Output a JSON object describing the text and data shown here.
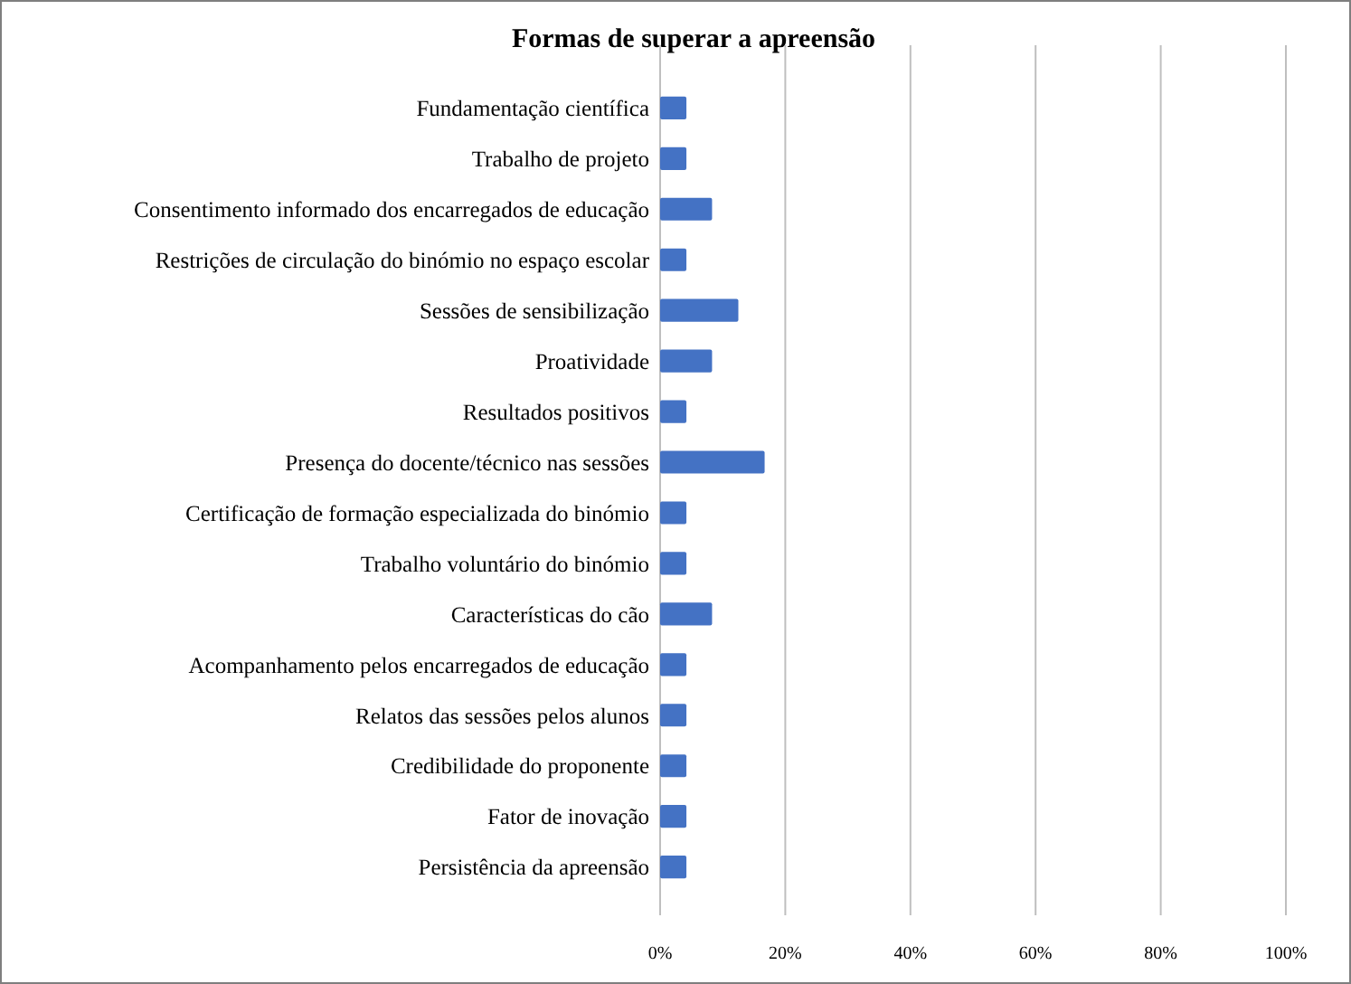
{
  "chart_data": {
    "type": "bar",
    "orientation": "horizontal",
    "title": "Formas de superar a apreensão",
    "categories": [
      "Fundamentação científica",
      "Trabalho de projeto",
      "Consentimento informado dos encarregados de educação",
      "Restrições de circulação do binómio no espaço escolar",
      "Sessões de sensibilização",
      "Proatividade",
      "Resultados positivos",
      "Presença do docente/técnico nas sessões",
      "Certificação de formação especializada do binómio",
      "Trabalho voluntário do binómio",
      "Características do cão",
      "Acompanhamento pelos encarregados de educação",
      "Relatos das sessões pelos alunos",
      "Credibilidade do proponente",
      "Fator de inovação",
      "Persistência da apreensão"
    ],
    "values": [
      4.2,
      4.2,
      8.3,
      4.2,
      12.5,
      8.3,
      4.2,
      16.7,
      4.2,
      4.2,
      8.3,
      4.2,
      4.2,
      4.2,
      4.2,
      4.2
    ],
    "color": "#4472c4",
    "xlim": [
      0,
      100
    ],
    "xticks": [
      {
        "value": 0,
        "label": "0%"
      },
      {
        "value": 20,
        "label": "20%"
      },
      {
        "value": 40,
        "label": "40%"
      },
      {
        "value": 60,
        "label": "60%"
      },
      {
        "value": 80,
        "label": "80%"
      },
      {
        "value": 100,
        "label": "100%"
      }
    ],
    "grid": "x"
  }
}
